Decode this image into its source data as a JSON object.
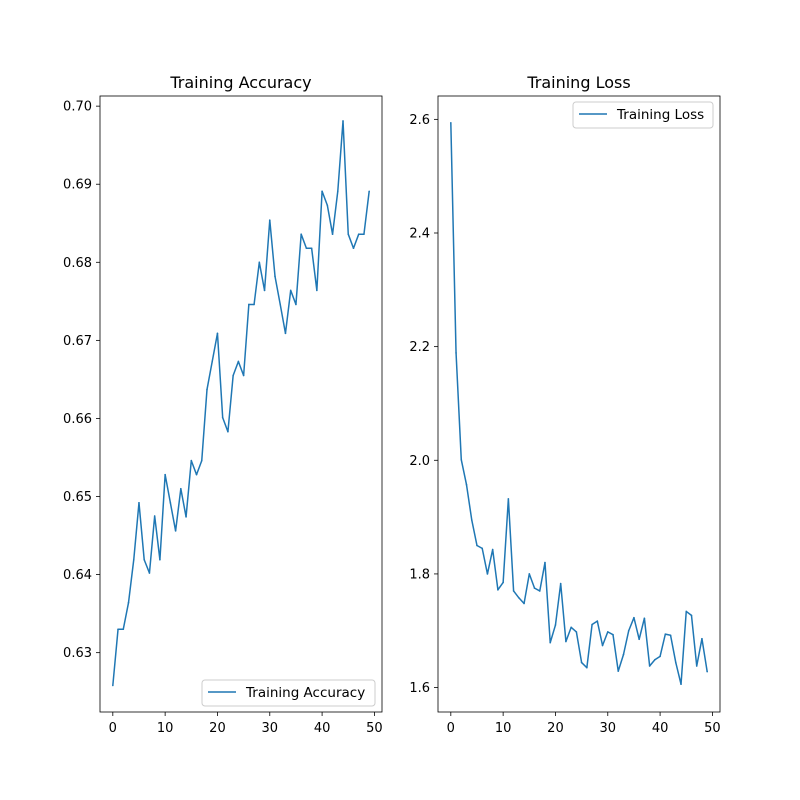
{
  "chart_data": [
    {
      "type": "line",
      "title": "Training Accuracy",
      "xlabel": "",
      "ylabel": "",
      "x": [
        0,
        1,
        2,
        3,
        4,
        5,
        6,
        7,
        8,
        9,
        10,
        11,
        12,
        13,
        14,
        15,
        16,
        17,
        18,
        19,
        20,
        21,
        22,
        23,
        24,
        25,
        26,
        27,
        28,
        29,
        30,
        31,
        32,
        33,
        34,
        35,
        36,
        37,
        38,
        39,
        40,
        41,
        42,
        43,
        44,
        45,
        46,
        47,
        48,
        49
      ],
      "xlim": [
        -2.45,
        51.45
      ],
      "ylim": [
        0.6224,
        0.7013
      ],
      "xticks": [
        0,
        10,
        20,
        30,
        40,
        50
      ],
      "yticks": [
        0.63,
        0.64,
        0.65,
        0.66,
        0.67,
        0.68,
        0.69,
        0.7
      ],
      "ytick_labels": [
        "0.63",
        "0.64",
        "0.65",
        "0.66",
        "0.67",
        "0.68",
        "0.69",
        "0.70"
      ],
      "grid": false,
      "legend_position": "lower-right",
      "color": "#1f77b4",
      "series": [
        {
          "name": "Training Accuracy",
          "values": [
            0.6258,
            0.633,
            0.633,
            0.6364,
            0.6419,
            0.6492,
            0.6419,
            0.6402,
            0.6475,
            0.6419,
            0.6528,
            0.6492,
            0.6456,
            0.651,
            0.6474,
            0.6546,
            0.6528,
            0.6546,
            0.6637,
            0.6673,
            0.6709,
            0.6601,
            0.6583,
            0.6655,
            0.6673,
            0.6655,
            0.6746,
            0.6746,
            0.68,
            0.6764,
            0.6854,
            0.6782,
            0.6746,
            0.6709,
            0.6764,
            0.6746,
            0.6836,
            0.6818,
            0.6818,
            0.6764,
            0.6891,
            0.6873,
            0.6836,
            0.6891,
            0.6981,
            0.6836,
            0.6818,
            0.6836,
            0.6836,
            0.6891
          ]
        }
      ]
    },
    {
      "type": "line",
      "title": "Training Loss",
      "xlabel": "",
      "ylabel": "",
      "x": [
        0,
        1,
        2,
        3,
        4,
        5,
        6,
        7,
        8,
        9,
        10,
        11,
        12,
        13,
        14,
        15,
        16,
        17,
        18,
        19,
        20,
        21,
        22,
        23,
        24,
        25,
        26,
        27,
        28,
        29,
        30,
        31,
        32,
        33,
        34,
        35,
        36,
        37,
        38,
        39,
        40,
        41,
        42,
        43,
        44,
        45,
        46,
        47,
        48,
        49
      ],
      "xlim": [
        -2.45,
        51.45
      ],
      "ylim": [
        1.557,
        2.6411
      ],
      "xticks": [
        0,
        10,
        20,
        30,
        40,
        50
      ],
      "yticks": [
        1.6,
        1.8,
        2.0,
        2.2,
        2.4,
        2.6
      ],
      "ytick_labels": [
        "1.6",
        "1.8",
        "2.0",
        "2.2",
        "2.4",
        "2.6"
      ],
      "grid": false,
      "legend_position": "upper-right",
      "color": "#1f77b4",
      "series": [
        {
          "name": "Training Loss",
          "values": [
            2.594,
            2.189,
            2.001,
            1.957,
            1.895,
            1.85,
            1.845,
            1.8,
            1.843,
            1.772,
            1.785,
            1.932,
            1.77,
            1.758,
            1.748,
            1.8,
            1.775,
            1.77,
            1.82,
            1.679,
            1.71,
            1.783,
            1.681,
            1.706,
            1.698,
            1.644,
            1.635,
            1.711,
            1.717,
            1.674,
            1.698,
            1.693,
            1.629,
            1.658,
            1.7,
            1.723,
            1.685,
            1.722,
            1.638,
            1.649,
            1.655,
            1.694,
            1.692,
            1.644,
            1.606,
            1.734,
            1.727,
            1.638,
            1.686,
            1.628
          ]
        }
      ]
    }
  ]
}
